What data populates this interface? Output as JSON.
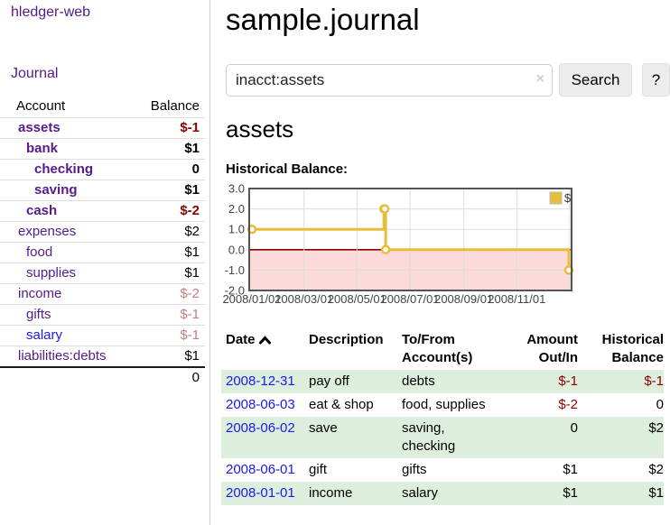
{
  "app": {
    "title": "hledger-web"
  },
  "sidebar": {
    "journal_label": "Journal",
    "accounts_table": {
      "headers": {
        "account": "Account",
        "balance": "Balance"
      },
      "rows": [
        {
          "name": "assets",
          "indent": 0,
          "bold": true,
          "link_color": "purple",
          "balance": "$-1"
        },
        {
          "name": "bank",
          "indent": 1,
          "bold": true,
          "link_color": "purple",
          "balance": "$1"
        },
        {
          "name": "checking",
          "indent": 2,
          "bold": true,
          "link_color": "purple",
          "balance": "0"
        },
        {
          "name": "saving",
          "indent": 2,
          "bold": true,
          "link_color": "purple",
          "balance": "$1"
        },
        {
          "name": "cash",
          "indent": 1,
          "bold": true,
          "link_color": "purple",
          "balance": "$-2"
        },
        {
          "name": "expenses",
          "indent": 0,
          "bold": false,
          "link_color": "purple",
          "balance": "$2"
        },
        {
          "name": "food",
          "indent": 1,
          "bold": false,
          "link_color": "purple",
          "balance": "$1"
        },
        {
          "name": "supplies",
          "indent": 1,
          "bold": false,
          "link_color": "purple",
          "balance": "$1"
        },
        {
          "name": "income",
          "indent": 0,
          "bold": false,
          "link_color": "purple",
          "balance": "$-2"
        },
        {
          "name": "gifts",
          "indent": 1,
          "bold": false,
          "link_color": "purple",
          "balance": "$-1"
        },
        {
          "name": "salary",
          "indent": 1,
          "bold": false,
          "link_color": "blue",
          "balance": "$-1"
        },
        {
          "name": "liabilities:debts",
          "indent": 0,
          "bold": false,
          "link_color": "purple",
          "balance": "$1"
        }
      ],
      "total": "0"
    }
  },
  "main": {
    "title": "sample.journal",
    "search": {
      "value": "inacct:assets",
      "clear_icon": "×",
      "button": "Search",
      "help_button": "?"
    },
    "account_heading": "assets",
    "chart_label": "Historical Balance:"
  },
  "chart_data": {
    "type": "line",
    "step": true,
    "title": "Historical Balance:",
    "series": [
      {
        "name": "$",
        "color": "#e8bd3c",
        "points": [
          [
            "2008-01-01",
            1
          ],
          [
            "2008-06-01",
            2
          ],
          [
            "2008-06-02",
            2
          ],
          [
            "2008-06-03",
            0
          ],
          [
            "2008-12-31",
            -1
          ]
        ]
      }
    ],
    "x_range": [
      "2008-01-01",
      "2008-12-31"
    ],
    "y_range": [
      -2,
      3
    ],
    "y_ticks": [
      3,
      2,
      1,
      0,
      -1,
      -2
    ],
    "x_ticks": [
      {
        "date": "2008-01-01",
        "label": "2008/01/01"
      },
      {
        "date": "2008-03-01",
        "label": "2008/03/01"
      },
      {
        "date": "2008-05-01",
        "label": "2008/05/01"
      },
      {
        "date": "2008-07-01",
        "label": "2008/07/01"
      },
      {
        "date": "2008-09-01",
        "label": "2008/09/01"
      },
      {
        "date": "2008-11-01",
        "label": "2008/11/01"
      },
      {
        "date": "2009-01-01",
        "label": ""
      }
    ],
    "legend": {
      "label": "$",
      "position": "top-right"
    },
    "grid": true,
    "colors": {
      "negative_region": "#fbdada",
      "zero_line": "#8b0000",
      "gridline": "#dcdcdc",
      "border": "#545454",
      "marker_fill": "#ffffff",
      "tick_label": "#444444"
    }
  },
  "register_table": {
    "headers": {
      "date": "Date",
      "sort_icon": "chevron-up",
      "description": "Description",
      "accounts": "To/From Account(s)",
      "amount": "Amount Out/In",
      "balance": "Historical Balance"
    },
    "rows": [
      {
        "date": "2008-12-31",
        "description": "pay off",
        "accounts": "debts",
        "amount": "$-1",
        "balance": "$-1"
      },
      {
        "date": "2008-06-03",
        "description": "eat & shop",
        "accounts": "food, supplies",
        "amount": "$-2",
        "balance": "0"
      },
      {
        "date": "2008-06-02",
        "description": "save",
        "accounts": "saving, checking",
        "amount": "0",
        "balance": "$2"
      },
      {
        "date": "2008-06-01",
        "description": "gift",
        "accounts": "gifts",
        "amount": "$1",
        "balance": "$2"
      },
      {
        "date": "2008-01-01",
        "description": "income",
        "accounts": "salary",
        "amount": "$1",
        "balance": "$1"
      }
    ]
  }
}
